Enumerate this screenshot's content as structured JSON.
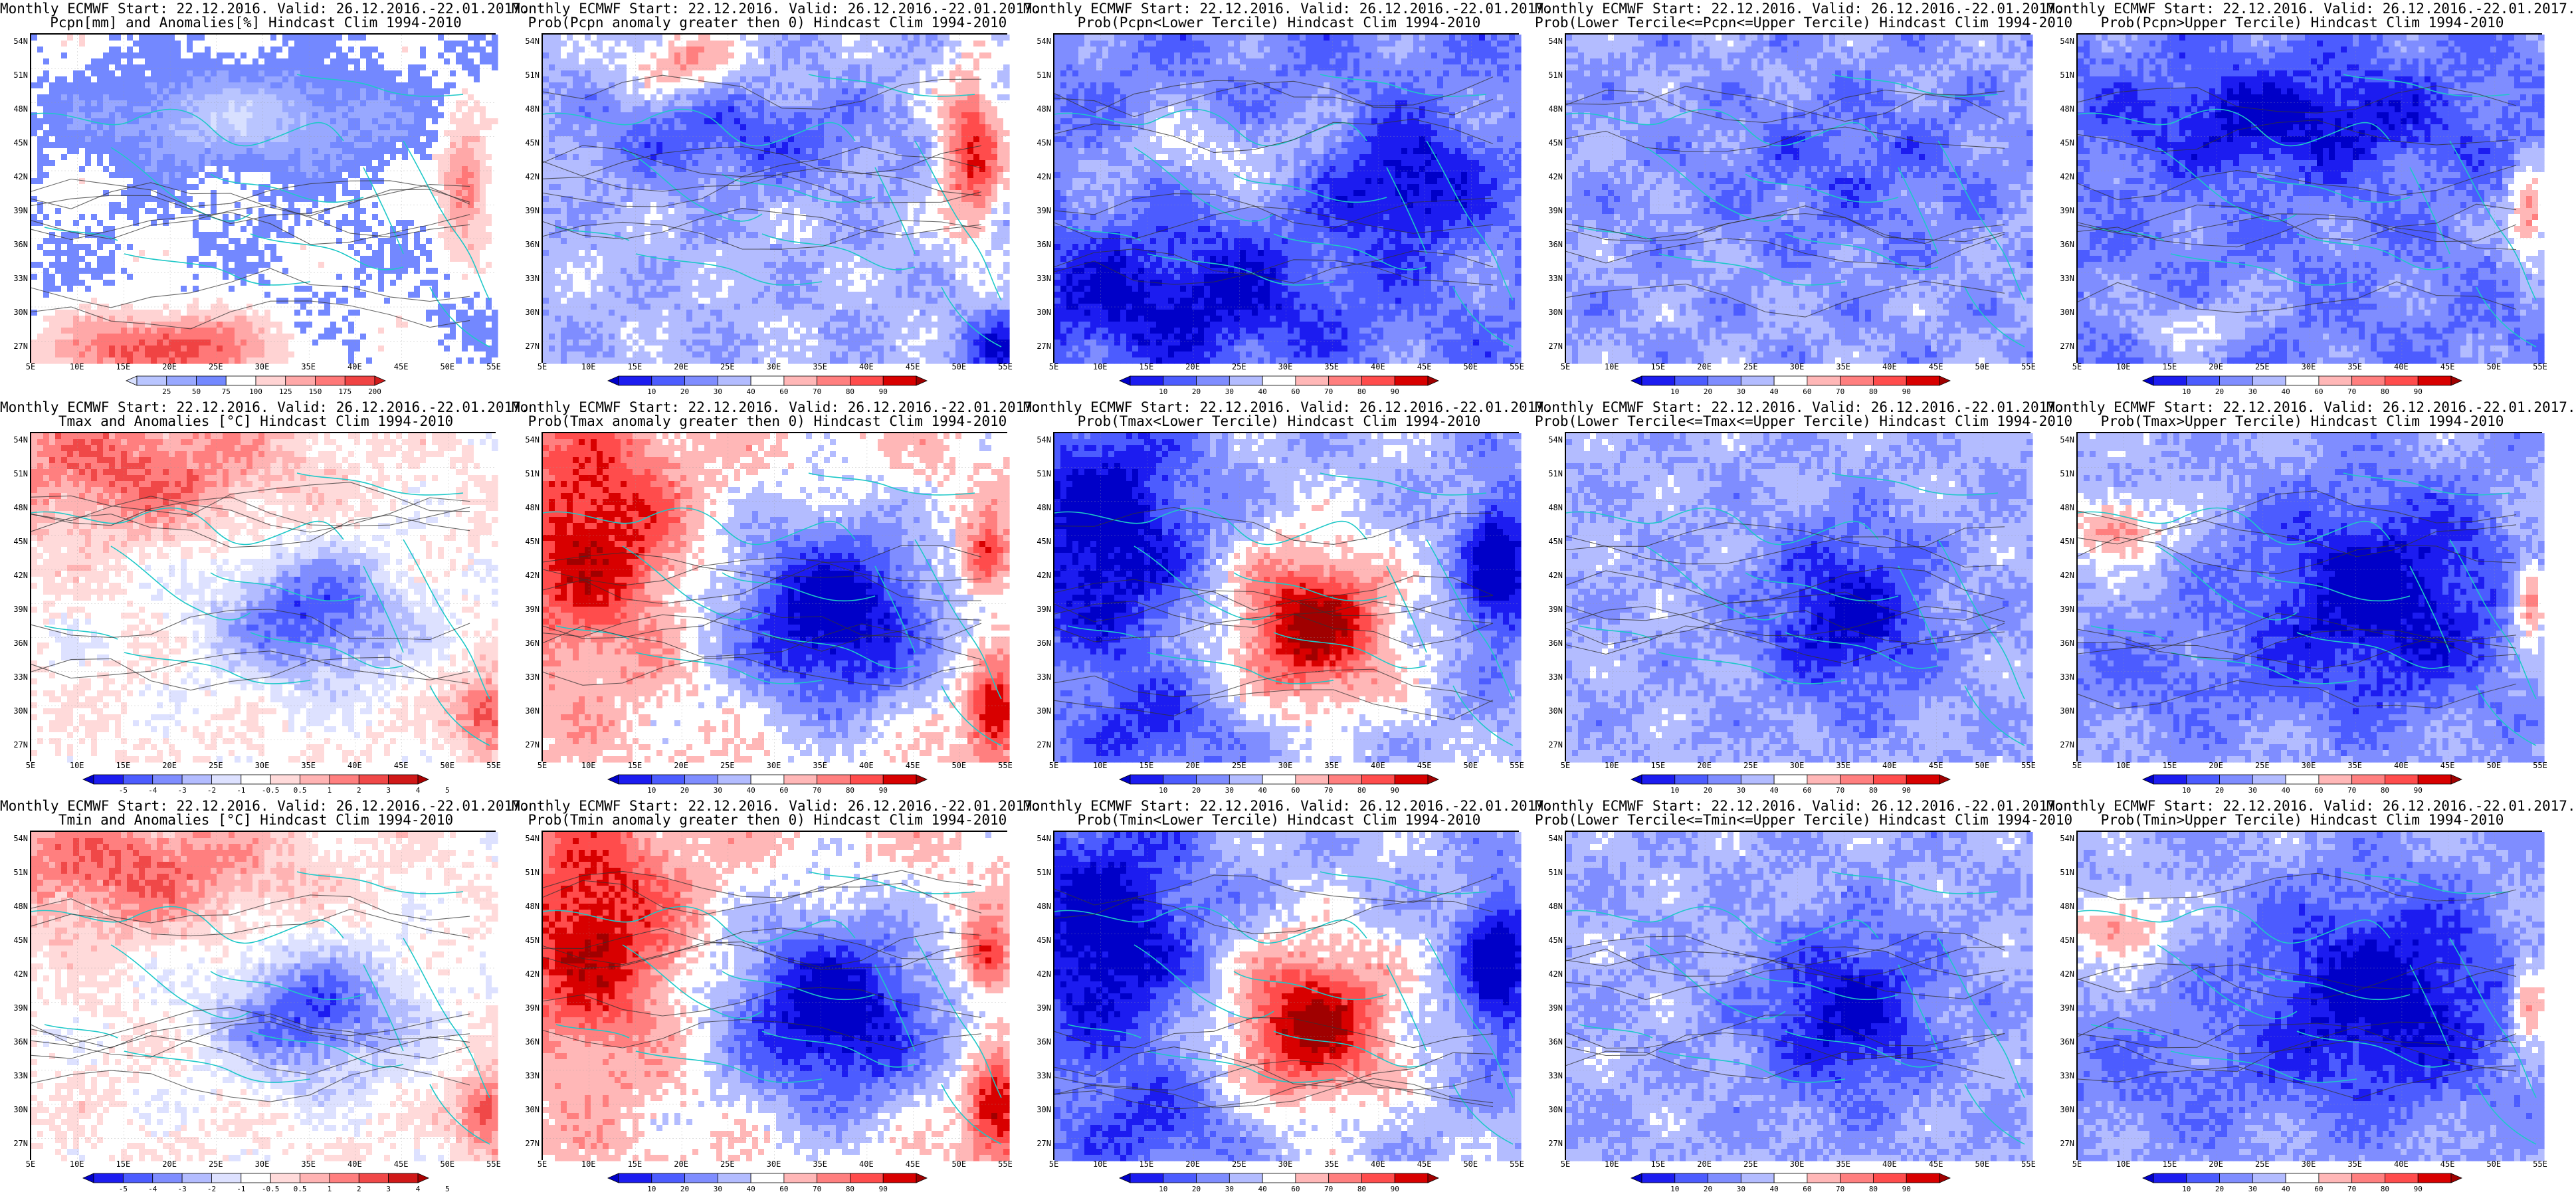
{
  "page": {
    "title_line1": "Monthly ECMWF Start: 22.12.2016. Valid: 26.12.2016.-22.01.2017.",
    "lat_labels": [
      "54N",
      "51N",
      "48N",
      "45N",
      "42N",
      "39N",
      "36N",
      "33N",
      "30N",
      "27N"
    ],
    "lon_labels": [
      "5E",
      "10E",
      "15E",
      "20E",
      "25E",
      "30E",
      "35E",
      "40E",
      "45E",
      "50E",
      "55E"
    ]
  },
  "colors": {
    "ocean_line": "#1ec8c8",
    "contour": "#333333",
    "neutral": "#ffffff"
  },
  "scales": {
    "precip": {
      "colors": [
        "#d8e0ff",
        "#b9c5ff",
        "#98a8ff",
        "#7388ff",
        "#ffffff",
        "#ffd3d3",
        "#ffa8a8",
        "#ff7878",
        "#f04343",
        "#d01b1b"
      ],
      "ticks": [
        "25",
        "50",
        "75",
        "100",
        "125",
        "150",
        "175",
        "200"
      ]
    },
    "prob": {
      "colors": [
        "#0000c8",
        "#1c1cf0",
        "#4c5cff",
        "#7f8dff",
        "#b3bcff",
        "#ffffff",
        "#ffb7b7",
        "#ff7f7f",
        "#ff4c4c",
        "#d80000",
        "#a00000"
      ],
      "ticks": [
        "10",
        "20",
        "30",
        "40",
        "60",
        "70",
        "80",
        "90"
      ]
    },
    "temp": {
      "colors": [
        "#0000c8",
        "#1c1cf0",
        "#4c5cff",
        "#7f8dff",
        "#b3bcff",
        "#dde1ff",
        "#ffffff",
        "#ffdada",
        "#ffb3b3",
        "#ff7f7f",
        "#f04848",
        "#d01818",
        "#a80000"
      ],
      "ticks": [
        "-5",
        "-4",
        "-3",
        "-2",
        "-1",
        "-0.5",
        "0.5",
        "1",
        "2",
        "3",
        "4",
        "5"
      ]
    }
  },
  "panels": [
    {
      "subtitle": "Pcpn[mm] and Anomalies[%] Hindcast Clim 1994-2010",
      "scale": "precip",
      "pattern": "pcpn_anom"
    },
    {
      "subtitle": "Prob(Pcpn anomaly greater then 0) Hindcast Clim 1994-2010",
      "scale": "prob",
      "pattern": "pcpn_prob_pos"
    },
    {
      "subtitle": "Prob(Pcpn<Lower Tercile) Hindcast Clim 1994-2010",
      "scale": "prob",
      "pattern": "pcpn_lower"
    },
    {
      "subtitle": "Prob(Lower Tercile<=Pcpn<=Upper Tercile) Hindcast Clim 1994-2010",
      "scale": "prob",
      "pattern": "pcpn_middle"
    },
    {
      "subtitle": "Prob(Pcpn>Upper Tercile) Hindcast Clim 1994-2010",
      "scale": "prob",
      "pattern": "pcpn_upper"
    },
    {
      "subtitle": "Tmax and Anomalies [°C] Hindcast Clim 1994-2010",
      "scale": "temp",
      "pattern": "t_anom"
    },
    {
      "subtitle": "Prob(Tmax anomaly greater then 0) Hindcast Clim 1994-2010",
      "scale": "prob",
      "pattern": "t_prob_pos"
    },
    {
      "subtitle": "Prob(Tmax<Lower Tercile) Hindcast Clim 1994-2010",
      "scale": "prob",
      "pattern": "t_lower"
    },
    {
      "subtitle": "Prob(Lower Tercile<=Tmax<=Upper Tercile) Hindcast Clim 1994-2010",
      "scale": "prob",
      "pattern": "t_middle"
    },
    {
      "subtitle": "Prob(Tmax>Upper Tercile) Hindcast Clim 1994-2010",
      "scale": "prob",
      "pattern": "t_upper"
    },
    {
      "subtitle": "Tmin and Anomalies [°C] Hindcast Clim 1994-2010",
      "scale": "temp",
      "pattern": "t_anom"
    },
    {
      "subtitle": "Prob(Tmin anomaly greater then 0) Hindcast Clim 1994-2010",
      "scale": "prob",
      "pattern": "t_prob_pos"
    },
    {
      "subtitle": "Prob(Tmin<Lower Tercile) Hindcast Clim 1994-2010",
      "scale": "prob",
      "pattern": "t_lower"
    },
    {
      "subtitle": "Prob(Lower Tercile<=Tmin<=Upper Tercile) Hindcast Clim 1994-2010",
      "scale": "prob",
      "pattern": "t_middle"
    },
    {
      "subtitle": "Prob(Tmin>Upper Tercile) Hindcast Clim 1994-2010",
      "scale": "prob",
      "pattern": "t_upper"
    }
  ]
}
